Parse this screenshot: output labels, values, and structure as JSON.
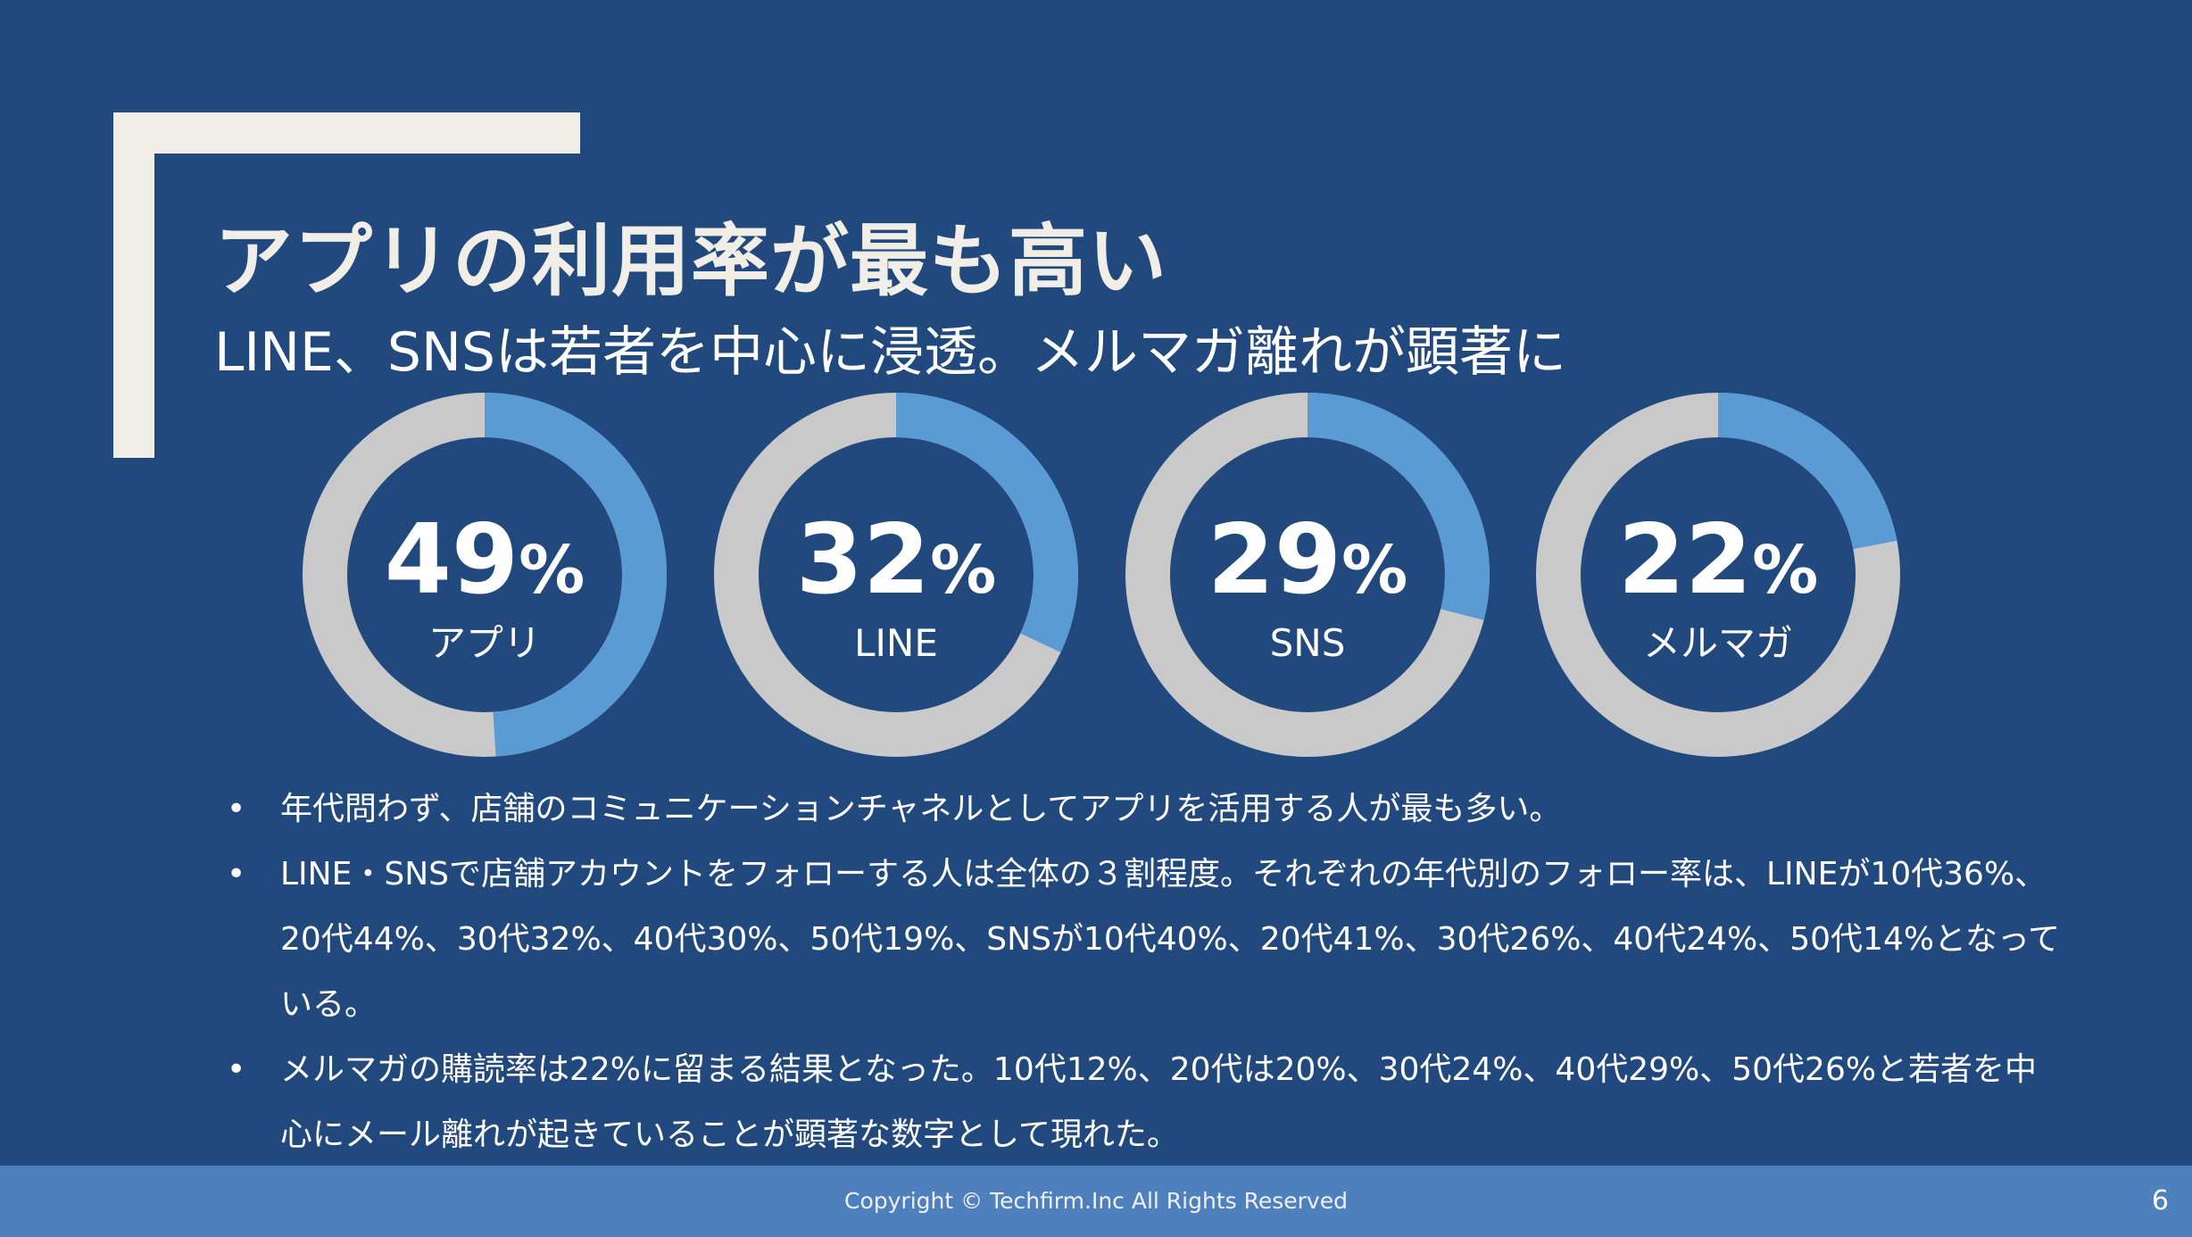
{
  "slide": {
    "title": "アプリの利用率が最も高い",
    "subtitle": "LINE、SNSは若者を中心に浸透。メルマガ離れが顕著に"
  },
  "chart_data": {
    "type": "pie",
    "style": "donut",
    "colors": {
      "filled": "#5b9bd5",
      "remainder": "#c9c9c9"
    },
    "items": [
      {
        "label": "アプリ",
        "value": 49,
        "display": "49",
        "unit": "%"
      },
      {
        "label": "LINE",
        "value": 32,
        "display": "32",
        "unit": "%"
      },
      {
        "label": "SNS",
        "value": 29,
        "display": "29",
        "unit": "%"
      },
      {
        "label": "メルマガ",
        "value": 22,
        "display": "22",
        "unit": "%"
      }
    ]
  },
  "bullets": [
    "年代問わず、店舗のコミュニケーションチャネルとしてアプリを活用する人が最も多い。",
    "LINE・SNSで店舗アカウントをフォローする人は全体の３割程度。それぞれの年代別のフォロー率は、LINEが10代36%、20代44%、30代32%、40代30%、50代19%、SNSが10代40%、20代41%、30代26%、40代24%、50代14%となっている。",
    "メルマガの購読率は22%に留まる結果となった。10代12%、20代は20%、30代24%、40代29%、50代26%と若者を中心にメール離れが起きていることが顕著な数字として現れた。"
  ],
  "bullet_symbol": "•",
  "footer": {
    "copyright": "Copyright © Techfirm.Inc All Rights Reserved",
    "page_number": "6"
  },
  "colors": {
    "background": "#21497d",
    "bracket": "#f0eee6",
    "footer": "#4e80bd"
  }
}
